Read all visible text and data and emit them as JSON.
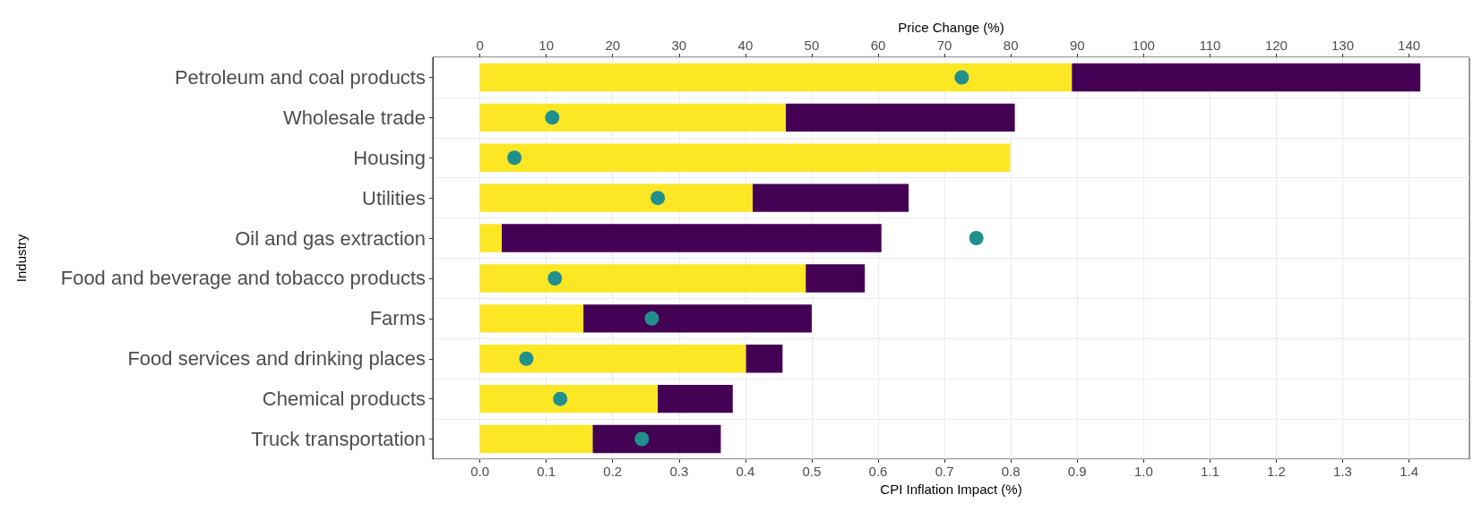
{
  "chart_data": {
    "type": "bar",
    "orientation": "horizontal",
    "stacked": true,
    "xlabel": "CPI Inflation Impact (%)",
    "x2label": "Price Change (%)",
    "ylabel": "Industry",
    "categories": [
      "Petroleum and coal products",
      "Wholesale trade",
      "Housing",
      "Utilities",
      "Oil and gas extraction",
      "Food and beverage and tobacco products",
      "Farms",
      "Food services and drinking places",
      "Chemical products",
      "Truck transportation"
    ],
    "series": [
      {
        "color": "#fde725",
        "values": [
          0.892,
          0.461,
          0.799,
          0.411,
          0.033,
          0.491,
          0.156,
          0.401,
          0.268,
          0.17
        ]
      },
      {
        "color": "#440154",
        "values": [
          0.525,
          0.345,
          0,
          0.235,
          0.572,
          0.089,
          0.344,
          0.055,
          0.113,
          0.193
        ]
      },
      {
        "type": "scatter",
        "axis": "x2",
        "color": "#21908c",
        "values": [
          72.6,
          10.9,
          5.2,
          26.8,
          74.8,
          11.3,
          25.9,
          7.0,
          12.1,
          24.4
        ]
      }
    ],
    "xlim": [
      -0.071,
      1.491
    ],
    "xticks": [
      {
        "value": 0,
        "label": "0.0"
      },
      0.1,
      0.2,
      0.3,
      0.4,
      0.5,
      0.6,
      0.7,
      0.8,
      0.9,
      {
        "value": 1,
        "label": "1.0"
      },
      1.1,
      1.2,
      1.3,
      1.4
    ],
    "x2lim": [
      -7.1,
      149.1
    ],
    "x2ticks": [
      0,
      10,
      20,
      30,
      40,
      50,
      60,
      70,
      80,
      90,
      100,
      110,
      120,
      130,
      140
    ],
    "grid": true,
    "marker": "circle"
  }
}
